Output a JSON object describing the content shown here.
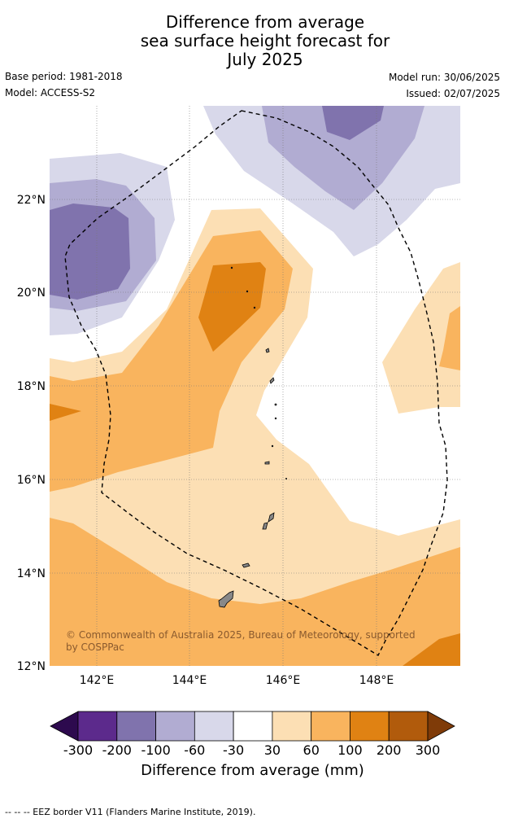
{
  "title": {
    "line1": "Difference from average",
    "line2": "sea surface height forecast for",
    "line3": "July 2025"
  },
  "meta": {
    "base_period": "Base period: 1981-2018",
    "model": "Model: ACCESS-S2",
    "model_run": "Model run: 30/06/2025",
    "issued": "Issued: 02/07/2025"
  },
  "axes": {
    "lat_labels": [
      "22°N",
      "20°N",
      "18°N",
      "16°N",
      "14°N",
      "12°N"
    ],
    "lon_labels": [
      "142°E",
      "144°E",
      "146°E",
      "148°E"
    ]
  },
  "copyright": {
    "line1": "© Commonwealth of Australia 2025, Bureau of Meteorology, supported",
    "line2": "by COSPPac"
  },
  "colorbar": {
    "title": "Difference from average (mm)",
    "ticks": [
      "-300",
      "-200",
      "-100",
      "-60",
      "-30",
      "30",
      "60",
      "100",
      "200",
      "300"
    ],
    "colors": [
      "#2d0a4e",
      "#5c2a8c",
      "#8073ad",
      "#b1acd2",
      "#d8d8ea",
      "#ffffff",
      "#fcdfb4",
      "#f9b45e",
      "#e08213",
      "#b15b0c",
      "#7f3b08"
    ]
  },
  "footer": "-- -- -- EEZ border V11 (Flanders Marine Institute, 2019)."
}
